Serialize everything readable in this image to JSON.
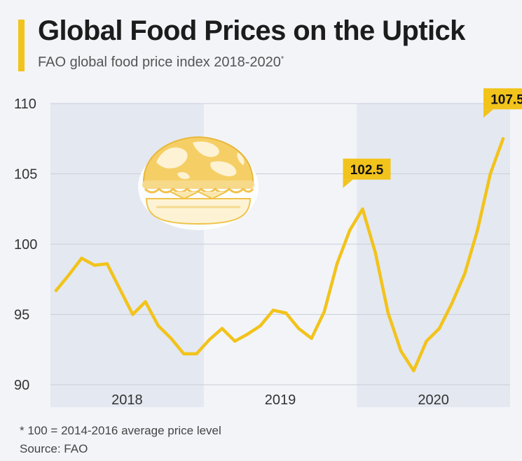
{
  "header": {
    "title": "Global Food Prices on the Uptick",
    "subtitle": "FAO global food price index 2018-2020",
    "subtitle_mark": "*"
  },
  "footer": {
    "footnote": "* 100 = 2014-2016 average price level",
    "source": "Source: FAO"
  },
  "colors": {
    "accent": "#f2c31b",
    "line": "#f2c31b",
    "band": "#e4e8f0",
    "grid": "#c9ced8"
  },
  "illustration": {
    "icon": "globe-burger-icon"
  },
  "chart_data": {
    "type": "line",
    "x": [
      "2018-01",
      "2018-02",
      "2018-03",
      "2018-04",
      "2018-05",
      "2018-06",
      "2018-07",
      "2018-08",
      "2018-09",
      "2018-10",
      "2018-11",
      "2018-12",
      "2019-01",
      "2019-02",
      "2019-03",
      "2019-04",
      "2019-05",
      "2019-06",
      "2019-07",
      "2019-08",
      "2019-09",
      "2019-10",
      "2019-11",
      "2019-12",
      "2020-01",
      "2020-02",
      "2020-03",
      "2020-04",
      "2020-05",
      "2020-06",
      "2020-07",
      "2020-08",
      "2020-09",
      "2020-10",
      "2020-11",
      "2020-12"
    ],
    "series": [
      {
        "values": [
          96.7,
          97.8,
          99.0,
          98.5,
          98.6,
          96.8,
          95.0,
          95.9,
          94.2,
          93.3,
          92.2,
          92.2,
          93.2,
          94.0,
          93.1,
          93.6,
          94.2,
          95.3,
          95.1,
          94.0,
          93.3,
          95.2,
          98.6,
          101.0,
          102.5,
          99.4,
          95.1,
          92.4,
          91.0,
          93.1,
          94.0,
          95.8,
          97.9,
          101.0,
          105.0,
          107.5
        ]
      }
    ],
    "x_categories": [
      "2018",
      "2019",
      "2020"
    ],
    "y_ticks": [
      90,
      95,
      100,
      105,
      110
    ],
    "ylim": [
      90,
      110
    ],
    "grid": true,
    "annotations": [
      {
        "index": 24,
        "label": "102.5"
      },
      {
        "index": 35,
        "label": "107.5"
      }
    ]
  }
}
